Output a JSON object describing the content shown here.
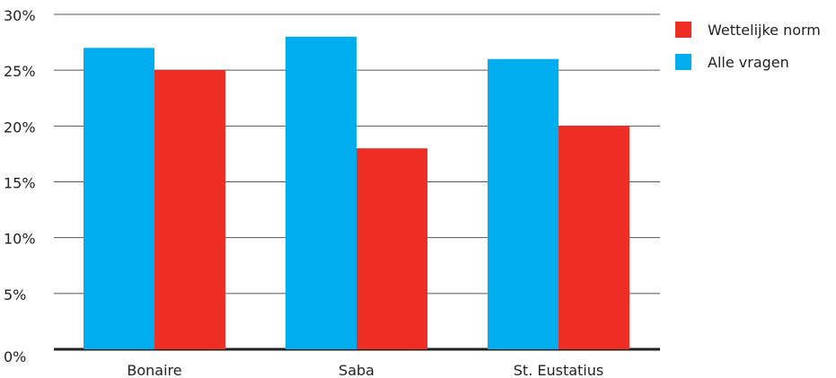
{
  "chart_data": {
    "type": "bar",
    "categories": [
      "Bonaire",
      "Saba",
      "St. Eustatius"
    ],
    "series": [
      {
        "name": "Alle vragen",
        "color": "#00aeef",
        "values": [
          27,
          28,
          26
        ]
      },
      {
        "name": "Wettelijke norm",
        "color": "#ee2d24",
        "values": [
          25,
          18,
          20
        ]
      }
    ],
    "ylim": [
      0,
      30
    ],
    "yticks": [
      0,
      5,
      10,
      15,
      20,
      25,
      30
    ],
    "ytick_labels": [
      "0%",
      "5%",
      "10%",
      "15%",
      "20%",
      "25%",
      "30%"
    ],
    "grid": true,
    "legend_position": "top-right",
    "legend_order": [
      "Wettelijke norm",
      "Alle vragen"
    ]
  }
}
